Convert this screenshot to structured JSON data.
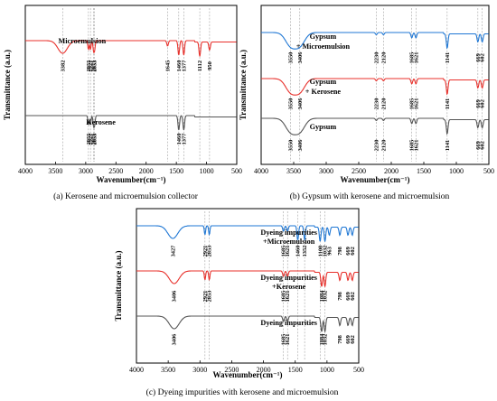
{
  "chart_data": [
    {
      "type": "line",
      "panel": "a",
      "caption": "(a) Kerosene and microemulsion collector",
      "xlabel": "Wavenumber(cm⁻¹)",
      "ylabel": "Transmittance (a.u.)",
      "xlim": [
        4000,
        500
      ],
      "xticks": [
        4000,
        3500,
        3000,
        2500,
        2000,
        1500,
        1000,
        500
      ],
      "dashed_lines": [
        3382,
        2955,
        2921,
        2853,
        2871,
        1645,
        1460,
        1377,
        1112,
        950
      ],
      "series": [
        {
          "name": "Microemulsion",
          "color": "#e8302b",
          "peaks": [
            {
              "x": 3382,
              "label": "3382"
            },
            {
              "x": 2955,
              "label": "2955"
            },
            {
              "x": 2921,
              "label": "2921"
            },
            {
              "x": 2853,
              "label": "2853"
            },
            {
              "x": 2871,
              "label": "2871"
            },
            {
              "x": 1645,
              "label": "1645"
            },
            {
              "x": 1460,
              "label": "1460"
            },
            {
              "x": 1377,
              "label": "1377"
            },
            {
              "x": 1112,
              "label": "1112"
            },
            {
              "x": 950,
              "label": "950"
            }
          ]
        },
        {
          "name": "Kerosene",
          "color": "#555555",
          "peaks": [
            {
              "x": 2955,
              "label": "2955"
            },
            {
              "x": 2921,
              "label": "2921"
            },
            {
              "x": 2853,
              "label": "2853"
            },
            {
              "x": 2871,
              "label": "2871"
            },
            {
              "x": 1460,
              "label": "1460"
            },
            {
              "x": 1377,
              "label": "1377"
            }
          ]
        }
      ]
    },
    {
      "type": "line",
      "panel": "b",
      "caption": "(b) Gypsum with kerosene and microemulsion",
      "xlabel": "Wavenumber(cm⁻¹)",
      "ylabel": "Transmittance (a.u.)",
      "xlim": [
        4000,
        500
      ],
      "xticks": [
        4000,
        3500,
        3000,
        2500,
        2000,
        1500,
        1000,
        500
      ],
      "dashed_lines": [
        3550,
        3406,
        2230,
        2120,
        1685,
        1621,
        1141,
        669,
        602
      ],
      "series": [
        {
          "name": "Gypsum+ Microemulsion",
          "color": "#1f77d4",
          "peaks": [
            {
              "x": 3550,
              "label": "3550"
            },
            {
              "x": 3406,
              "label": "3406"
            },
            {
              "x": 2230,
              "label": "2230"
            },
            {
              "x": 2120,
              "label": "2120"
            },
            {
              "x": 1685,
              "label": "1685"
            },
            {
              "x": 1621,
              "label": "1621"
            },
            {
              "x": 1141,
              "label": "1141"
            },
            {
              "x": 669,
              "label": "669"
            },
            {
              "x": 602,
              "label": "602"
            }
          ]
        },
        {
          "name": "Gypsum+ Kerosene",
          "color": "#e8302b",
          "peaks": [
            {
              "x": 3550,
              "label": "3550"
            },
            {
              "x": 3406,
              "label": "3406"
            },
            {
              "x": 2230,
              "label": "2230"
            },
            {
              "x": 2120,
              "label": "2120"
            },
            {
              "x": 1685,
              "label": "1685"
            },
            {
              "x": 1621,
              "label": "1621"
            },
            {
              "x": 1141,
              "label": "1141"
            },
            {
              "x": 669,
              "label": "669"
            },
            {
              "x": 602,
              "label": "602"
            }
          ]
        },
        {
          "name": "Gypsum",
          "color": "#555555",
          "peaks": [
            {
              "x": 3550,
              "label": "3550"
            },
            {
              "x": 3406,
              "label": "3406"
            },
            {
              "x": 2230,
              "label": "2230"
            },
            {
              "x": 2120,
              "label": "2120"
            },
            {
              "x": 1685,
              "label": "1685"
            },
            {
              "x": 1621,
              "label": "1621"
            },
            {
              "x": 1141,
              "label": "1141"
            },
            {
              "x": 669,
              "label": "669"
            },
            {
              "x": 602,
              "label": "602"
            }
          ]
        }
      ]
    },
    {
      "type": "line",
      "panel": "c",
      "caption": "(c) Dyeing impurities with kerosene and microemulsion",
      "xlabel": "Wavenumber(cm⁻¹)",
      "ylabel": "Transmittance (a.u.)",
      "xlim": [
        4000,
        500
      ],
      "xticks": [
        4000,
        3500,
        3000,
        2500,
        2000,
        1500,
        1000,
        500
      ],
      "dashed_lines": [
        2921,
        2853,
        1685,
        1621,
        1460,
        1352,
        1108,
        1032
      ],
      "series": [
        {
          "name": "Dyeing impurities +Microemulsion",
          "color": "#1f77d4",
          "peaks": [
            {
              "x": 3427,
              "label": "3427"
            },
            {
              "x": 2921,
              "label": "2921"
            },
            {
              "x": 2853,
              "label": "2853"
            },
            {
              "x": 1685,
              "label": "1685"
            },
            {
              "x": 1621,
              "label": "1621"
            },
            {
              "x": 1460,
              "label": "1460"
            },
            {
              "x": 1352,
              "label": "1352"
            },
            {
              "x": 1108,
              "label": "1108"
            },
            {
              "x": 963,
              "label": "963"
            },
            {
              "x": 1032,
              "label": "1032"
            },
            {
              "x": 798,
              "label": "798"
            },
            {
              "x": 669,
              "label": "669"
            },
            {
              "x": 602,
              "label": "602"
            }
          ]
        },
        {
          "name": "Dyeing impurities +Kerosene",
          "color": "#e8302b",
          "peaks": [
            {
              "x": 3406,
              "label": "3406"
            },
            {
              "x": 2921,
              "label": "2921"
            },
            {
              "x": 2853,
              "label": "2853"
            },
            {
              "x": 1685,
              "label": "1685"
            },
            {
              "x": 1621,
              "label": "1621"
            },
            {
              "x": 1084,
              "label": "1084"
            },
            {
              "x": 1032,
              "label": "1032"
            },
            {
              "x": 798,
              "label": "798"
            },
            {
              "x": 669,
              "label": "669"
            },
            {
              "x": 602,
              "label": "602"
            }
          ]
        },
        {
          "name": "Dyeing impurities",
          "color": "#555555",
          "peaks": [
            {
              "x": 3406,
              "label": "3406"
            },
            {
              "x": 1685,
              "label": "1685"
            },
            {
              "x": 1621,
              "label": "1621"
            },
            {
              "x": 1084,
              "label": "1084"
            },
            {
              "x": 1032,
              "label": "1032"
            },
            {
              "x": 798,
              "label": "798"
            },
            {
              "x": 669,
              "label": "669"
            },
            {
              "x": 602,
              "label": "602"
            }
          ]
        }
      ]
    }
  ]
}
